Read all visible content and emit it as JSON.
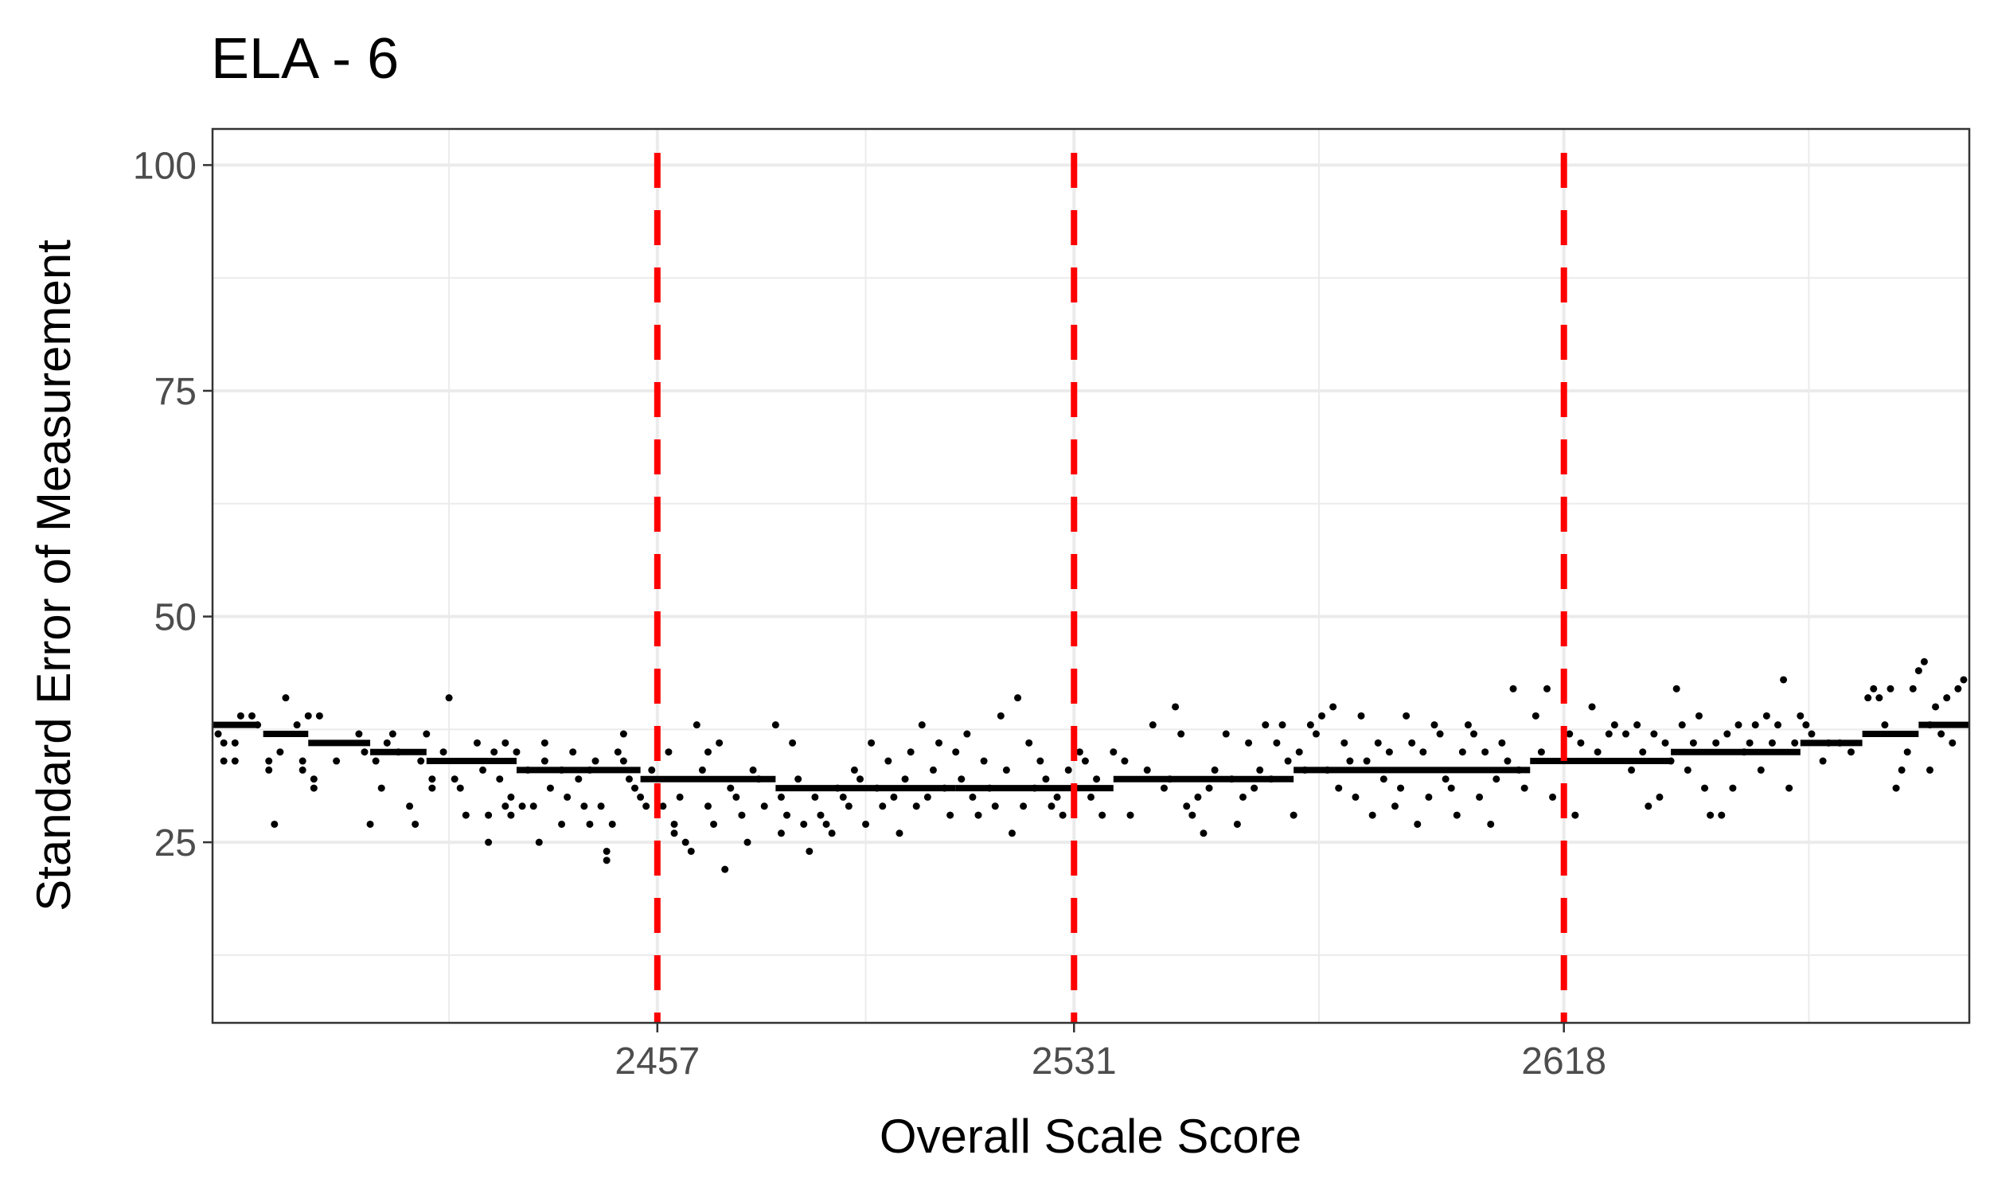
{
  "chart_data": {
    "type": "scatter",
    "title": "ELA - 6",
    "xlabel": "Overall Scale Score",
    "ylabel": "Standard Error of Measurement",
    "xlim": [
      2378,
      2690
    ],
    "ylim": [
      5,
      104
    ],
    "x_ticks": [
      2457,
      2531,
      2618
    ],
    "y_ticks": [
      25,
      50,
      75,
      100
    ],
    "grid": true,
    "colors": {
      "points": "#000000",
      "cut_lines": "#ff0000",
      "grid": "#ebebeb",
      "panel_border": "#333333",
      "tick_text": "#4d4d4d"
    },
    "cut_scores": [
      2457,
      2531,
      2618
    ],
    "segments": [
      {
        "x0": 2378,
        "x1": 2386,
        "y": 38
      },
      {
        "x0": 2387,
        "x1": 2395,
        "y": 37
      },
      {
        "x0": 2395,
        "x1": 2406,
        "y": 36
      },
      {
        "x0": 2406,
        "x1": 2416,
        "y": 35
      },
      {
        "x0": 2416,
        "x1": 2432,
        "y": 34
      },
      {
        "x0": 2432,
        "x1": 2454,
        "y": 33
      },
      {
        "x0": 2454,
        "x1": 2478,
        "y": 32
      },
      {
        "x0": 2478,
        "x1": 2510,
        "y": 31
      },
      {
        "x0": 2510,
        "x1": 2538,
        "y": 31
      },
      {
        "x0": 2538,
        "x1": 2570,
        "y": 32
      },
      {
        "x0": 2570,
        "x1": 2612,
        "y": 33
      },
      {
        "x0": 2612,
        "x1": 2637,
        "y": 34
      },
      {
        "x0": 2637,
        "x1": 2660,
        "y": 35
      },
      {
        "x0": 2660,
        "x1": 2671,
        "y": 36
      },
      {
        "x0": 2671,
        "x1": 2681,
        "y": 37
      },
      {
        "x0": 2681,
        "x1": 2690,
        "y": 38
      }
    ],
    "points": [
      [
        2379,
        37
      ],
      [
        2380,
        36
      ],
      [
        2380,
        34
      ],
      [
        2382,
        34
      ],
      [
        2382,
        36
      ],
      [
        2383,
        39
      ],
      [
        2385,
        39
      ],
      [
        2386,
        38
      ],
      [
        2388,
        33
      ],
      [
        2388,
        34
      ],
      [
        2389,
        27
      ],
      [
        2390,
        35
      ],
      [
        2391,
        41
      ],
      [
        2393,
        38
      ],
      [
        2394,
        34
      ],
      [
        2394,
        33
      ],
      [
        2395,
        39
      ],
      [
        2396,
        32
      ],
      [
        2396,
        31
      ],
      [
        2397,
        39
      ],
      [
        2400,
        34
      ],
      [
        2404,
        37
      ],
      [
        2405,
        35
      ],
      [
        2406,
        27
      ],
      [
        2407,
        34
      ],
      [
        2408,
        31
      ],
      [
        2409,
        36
      ],
      [
        2410,
        37
      ],
      [
        2411,
        35
      ],
      [
        2413,
        29
      ],
      [
        2414,
        27
      ],
      [
        2415,
        34
      ],
      [
        2416,
        37
      ],
      [
        2417,
        32
      ],
      [
        2417,
        31
      ],
      [
        2419,
        35
      ],
      [
        2420,
        41
      ],
      [
        2421,
        32
      ],
      [
        2422,
        31
      ],
      [
        2423,
        28
      ],
      [
        2425,
        36
      ],
      [
        2426,
        33
      ],
      [
        2427,
        28
      ],
      [
        2427,
        25
      ],
      [
        2428,
        35
      ],
      [
        2429,
        32
      ],
      [
        2430,
        36
      ],
      [
        2430,
        29
      ],
      [
        2431,
        30
      ],
      [
        2431,
        28
      ],
      [
        2432,
        35
      ],
      [
        2433,
        29
      ],
      [
        2434,
        33
      ],
      [
        2435,
        29
      ],
      [
        2436,
        25
      ],
      [
        2437,
        34
      ],
      [
        2437,
        36
      ],
      [
        2438,
        31
      ],
      [
        2440,
        27
      ],
      [
        2440,
        33
      ],
      [
        2441,
        30
      ],
      [
        2442,
        35
      ],
      [
        2443,
        32
      ],
      [
        2444,
        29
      ],
      [
        2445,
        27
      ],
      [
        2445,
        33
      ],
      [
        2446,
        34
      ],
      [
        2447,
        29
      ],
      [
        2448,
        23
      ],
      [
        2448,
        24
      ],
      [
        2449,
        27
      ],
      [
        2450,
        35
      ],
      [
        2451,
        37
      ],
      [
        2451,
        34
      ],
      [
        2452,
        32
      ],
      [
        2453,
        31
      ],
      [
        2454,
        30
      ],
      [
        2455,
        29
      ],
      [
        2456,
        33
      ],
      [
        2458,
        29
      ],
      [
        2459,
        35
      ],
      [
        2460,
        26
      ],
      [
        2460,
        27
      ],
      [
        2461,
        30
      ],
      [
        2462,
        25
      ],
      [
        2463,
        24
      ],
      [
        2464,
        38
      ],
      [
        2465,
        33
      ],
      [
        2466,
        29
      ],
      [
        2466,
        35
      ],
      [
        2467,
        27
      ],
      [
        2468,
        36
      ],
      [
        2469,
        22
      ],
      [
        2470,
        31
      ],
      [
        2471,
        30
      ],
      [
        2472,
        28
      ],
      [
        2473,
        25
      ],
      [
        2474,
        33
      ],
      [
        2475,
        32
      ],
      [
        2476,
        29
      ],
      [
        2478,
        38
      ],
      [
        2479,
        30
      ],
      [
        2479,
        26
      ],
      [
        2480,
        28
      ],
      [
        2481,
        36
      ],
      [
        2482,
        32
      ],
      [
        2483,
        27
      ],
      [
        2484,
        24
      ],
      [
        2485,
        30
      ],
      [
        2486,
        28
      ],
      [
        2487,
        27
      ],
      [
        2488,
        26
      ],
      [
        2489,
        31
      ],
      [
        2490,
        30
      ],
      [
        2491,
        29
      ],
      [
        2492,
        33
      ],
      [
        2493,
        32
      ],
      [
        2494,
        27
      ],
      [
        2495,
        36
      ],
      [
        2496,
        31
      ],
      [
        2497,
        29
      ],
      [
        2498,
        34
      ],
      [
        2499,
        30
      ],
      [
        2500,
        26
      ],
      [
        2501,
        32
      ],
      [
        2502,
        35
      ],
      [
        2503,
        29
      ],
      [
        2504,
        38
      ],
      [
        2505,
        30
      ],
      [
        2506,
        33
      ],
      [
        2507,
        36
      ],
      [
        2508,
        31
      ],
      [
        2509,
        28
      ],
      [
        2510,
        35
      ],
      [
        2511,
        32
      ],
      [
        2512,
        37
      ],
      [
        2513,
        30
      ],
      [
        2514,
        28
      ],
      [
        2515,
        34
      ],
      [
        2516,
        31
      ],
      [
        2517,
        29
      ],
      [
        2518,
        39
      ],
      [
        2519,
        33
      ],
      [
        2520,
        26
      ],
      [
        2521,
        41
      ],
      [
        2522,
        29
      ],
      [
        2523,
        36
      ],
      [
        2524,
        31
      ],
      [
        2525,
        34
      ],
      [
        2526,
        32
      ],
      [
        2527,
        29
      ],
      [
        2528,
        30
      ],
      [
        2529,
        28
      ],
      [
        2530,
        33
      ],
      [
        2532,
        35
      ],
      [
        2533,
        34
      ],
      [
        2534,
        30
      ],
      [
        2535,
        32
      ],
      [
        2536,
        28
      ],
      [
        2538,
        35
      ],
      [
        2540,
        34
      ],
      [
        2541,
        28
      ],
      [
        2544,
        33
      ],
      [
        2545,
        38
      ],
      [
        2547,
        31
      ],
      [
        2548,
        32
      ],
      [
        2549,
        40
      ],
      [
        2550,
        37
      ],
      [
        2551,
        29
      ],
      [
        2552,
        28
      ],
      [
        2553,
        30
      ],
      [
        2554,
        26
      ],
      [
        2555,
        31
      ],
      [
        2556,
        33
      ],
      [
        2558,
        37
      ],
      [
        2559,
        32
      ],
      [
        2560,
        27
      ],
      [
        2561,
        30
      ],
      [
        2562,
        36
      ],
      [
        2563,
        31
      ],
      [
        2564,
        33
      ],
      [
        2565,
        38
      ],
      [
        2566,
        32
      ],
      [
        2567,
        36
      ],
      [
        2568,
        38
      ],
      [
        2569,
        34
      ],
      [
        2570,
        28
      ],
      [
        2571,
        35
      ],
      [
        2572,
        33
      ],
      [
        2573,
        38
      ],
      [
        2574,
        37
      ],
      [
        2575,
        39
      ],
      [
        2576,
        33
      ],
      [
        2577,
        40
      ],
      [
        2578,
        31
      ],
      [
        2579,
        36
      ],
      [
        2580,
        34
      ],
      [
        2581,
        30
      ],
      [
        2582,
        39
      ],
      [
        2583,
        34
      ],
      [
        2584,
        28
      ],
      [
        2585,
        36
      ],
      [
        2586,
        32
      ],
      [
        2587,
        35
      ],
      [
        2588,
        29
      ],
      [
        2589,
        31
      ],
      [
        2590,
        39
      ],
      [
        2591,
        36
      ],
      [
        2592,
        27
      ],
      [
        2593,
        35
      ],
      [
        2594,
        30
      ],
      [
        2595,
        38
      ],
      [
        2596,
        37
      ],
      [
        2597,
        32
      ],
      [
        2598,
        31
      ],
      [
        2599,
        28
      ],
      [
        2600,
        35
      ],
      [
        2601,
        38
      ],
      [
        2602,
        37
      ],
      [
        2603,
        30
      ],
      [
        2604,
        35
      ],
      [
        2605,
        27
      ],
      [
        2606,
        32
      ],
      [
        2607,
        36
      ],
      [
        2608,
        34
      ],
      [
        2609,
        42
      ],
      [
        2610,
        33
      ],
      [
        2611,
        31
      ],
      [
        2613,
        39
      ],
      [
        2614,
        35
      ],
      [
        2615,
        42
      ],
      [
        2616,
        30
      ],
      [
        2619,
        37
      ],
      [
        2620,
        28
      ],
      [
        2621,
        36
      ],
      [
        2623,
        40
      ],
      [
        2624,
        35
      ],
      [
        2626,
        37
      ],
      [
        2627,
        38
      ],
      [
        2629,
        37
      ],
      [
        2630,
        33
      ],
      [
        2631,
        38
      ],
      [
        2632,
        35
      ],
      [
        2633,
        29
      ],
      [
        2634,
        37
      ],
      [
        2635,
        30
      ],
      [
        2636,
        36
      ],
      [
        2637,
        34
      ],
      [
        2638,
        42
      ],
      [
        2639,
        38
      ],
      [
        2640,
        33
      ],
      [
        2641,
        36
      ],
      [
        2642,
        39
      ],
      [
        2643,
        31
      ],
      [
        2644,
        28
      ],
      [
        2645,
        36
      ],
      [
        2646,
        28
      ],
      [
        2647,
        37
      ],
      [
        2648,
        31
      ],
      [
        2649,
        38
      ],
      [
        2650,
        35
      ],
      [
        2651,
        36
      ],
      [
        2652,
        38
      ],
      [
        2653,
        33
      ],
      [
        2654,
        39
      ],
      [
        2655,
        36
      ],
      [
        2656,
        38
      ],
      [
        2657,
        43
      ],
      [
        2658,
        31
      ],
      [
        2659,
        36
      ],
      [
        2660,
        39
      ],
      [
        2661,
        38
      ],
      [
        2662,
        37
      ],
      [
        2664,
        34
      ],
      [
        2665,
        36
      ],
      [
        2667,
        36
      ],
      [
        2669,
        35
      ],
      [
        2672,
        41
      ],
      [
        2673,
        42
      ],
      [
        2674,
        41
      ],
      [
        2675,
        38
      ],
      [
        2676,
        42
      ],
      [
        2677,
        31
      ],
      [
        2678,
        33
      ],
      [
        2679,
        35
      ],
      [
        2680,
        42
      ],
      [
        2681,
        44
      ],
      [
        2682,
        45
      ],
      [
        2683,
        38
      ],
      [
        2684,
        40
      ],
      [
        2685,
        37
      ],
      [
        2686,
        41
      ],
      [
        2687,
        36
      ],
      [
        2688,
        42
      ],
      [
        2689,
        43
      ],
      [
        2683,
        33
      ]
    ]
  }
}
